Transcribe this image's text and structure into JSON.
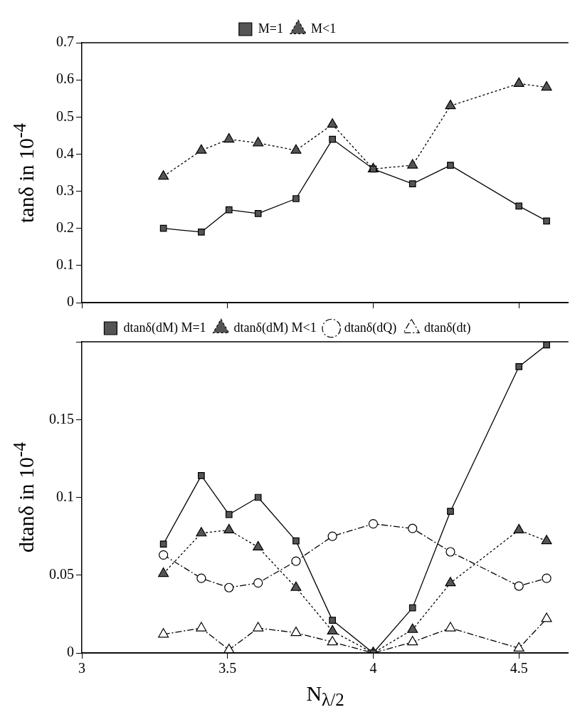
{
  "chart_data": [
    {
      "type": "line",
      "ylabel": "tanδ in 10$^{-4}$",
      "xlim": [
        3,
        4.67
      ],
      "xticks": [
        3,
        3.5,
        4,
        4.5
      ],
      "ylim": [
        0,
        0.7
      ],
      "yticks": [
        0,
        0.1,
        0.2,
        0.3,
        0.4,
        0.5,
        0.6,
        0.7
      ],
      "tick_labels": "y",
      "grid": false,
      "legend": "top",
      "x": [
        3.28,
        3.41,
        3.505,
        3.605,
        3.735,
        3.86,
        4.0,
        4.135,
        4.265,
        4.5,
        4.595
      ],
      "series": [
        {
          "name": "M=1",
          "color": "#000000",
          "marker": "square",
          "line_style": "solid",
          "values": [
            0.2,
            0.19,
            0.25,
            0.24,
            0.28,
            0.44,
            0.36,
            0.32,
            0.37,
            0.26,
            0.22
          ]
        },
        {
          "name": "M<1",
          "color": "#000000",
          "marker": "triangle",
          "line_style": "dotted",
          "values": [
            0.34,
            0.41,
            0.44,
            0.43,
            0.41,
            0.48,
            0.36,
            0.37,
            0.53,
            0.59,
            0.58
          ]
        }
      ]
    },
    {
      "type": "line",
      "xlabel": "N$_{λ/2}$",
      "ylabel": "dtanδ in 10$^{-4}$",
      "xlim": [
        3,
        4.67
      ],
      "xticks": [
        3,
        3.5,
        4,
        4.5
      ],
      "ylim": [
        0,
        0.2
      ],
      "yticks": [
        0,
        0.05,
        0.1,
        0.15,
        {
          "value": 0.2,
          "label": null
        }
      ],
      "grid": false,
      "legend": "top",
      "x": [
        3.28,
        3.41,
        3.505,
        3.605,
        3.735,
        3.86,
        4.0,
        4.135,
        4.265,
        4.5,
        4.595
      ],
      "series": [
        {
          "name": "dtanδ(dM) M=1",
          "color": "#000000",
          "marker": "square",
          "line_style": "solid",
          "values": [
            0.07,
            0.114,
            0.089,
            0.1,
            0.072,
            0.021,
            0.0,
            0.029,
            0.091,
            0.184,
            0.198
          ]
        },
        {
          "name": "dtanδ(dM) M<1",
          "color": "#000000",
          "marker": "triangle",
          "line_style": "dotted",
          "values": [
            0.051,
            0.077,
            0.079,
            0.068,
            0.042,
            0.014,
            0.0,
            0.015,
            0.045,
            0.079,
            0.072
          ]
        },
        {
          "name": "dtanδ(dQ)",
          "color": "#000000",
          "marker": "circle",
          "line_style": "dashed",
          "values": [
            0.063,
            0.048,
            0.042,
            0.045,
            0.059,
            0.075,
            0.083,
            0.08,
            0.065,
            0.043,
            0.048
          ]
        },
        {
          "name": "dtanδ(dt)",
          "color": "#000000",
          "marker": "triangle",
          "line_style": "dashed",
          "values": [
            0.012,
            0.016,
            0.002,
            0.016,
            0.013,
            0.007,
            0.0,
            0.007,
            0.016,
            0.003,
            0.022
          ]
        }
      ]
    }
  ]
}
